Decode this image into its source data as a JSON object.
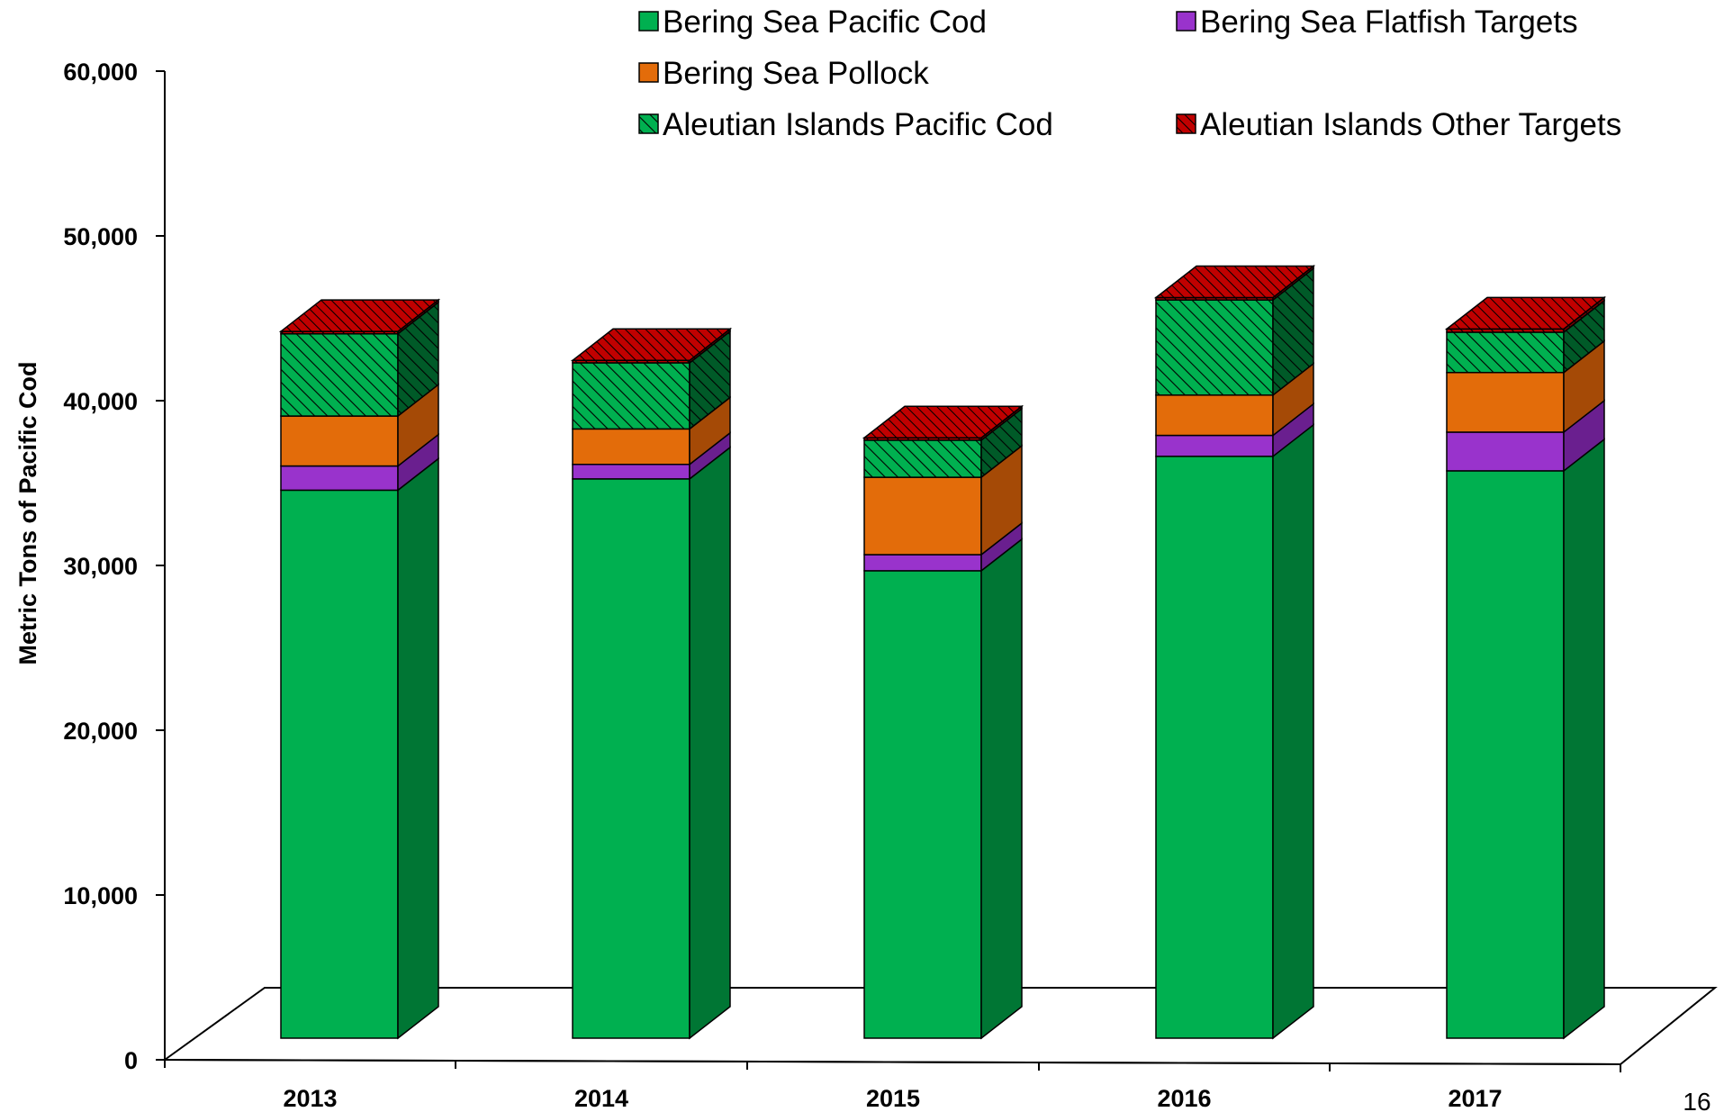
{
  "page_number": "16",
  "colors": {
    "pacific_cod_front": "#00b050",
    "pacific_cod_side": "#007634",
    "flatfish_front": "#9933cc",
    "flatfish_side": "#6a1f8f",
    "pollock_front": "#e36c0a",
    "pollock_side": "#a54a06",
    "ai_cod_front": "#00b050",
    "ai_cod_side": "#005a28",
    "ai_other_front": "#c00000",
    "ai_other_side": "#7a0000"
  },
  "chart_data": {
    "type": "bar",
    "stacked": true,
    "three_d": true,
    "categories": [
      "2013",
      "2014",
      "2015",
      "2016",
      "2017"
    ],
    "ylabel": "Metric Tons of Pacific Cod",
    "xlabel": "",
    "ylim": [
      0,
      60000
    ],
    "yticks": [
      0,
      10000,
      20000,
      30000,
      40000,
      50000,
      60000
    ],
    "ytick_labels": [
      "0",
      "10,000",
      "20,000",
      "30,000",
      "40,000",
      "50,000",
      "60,000"
    ],
    "legend_position": "top",
    "series": [
      {
        "name": "Bering Sea Pacific Cod",
        "values": [
          34000,
          34700,
          29000,
          36100,
          35200
        ],
        "pattern": "solid",
        "color_key": "pacific_cod"
      },
      {
        "name": "Bering Sea Flatfish Targets",
        "values": [
          1500,
          900,
          1000,
          1300,
          2400
        ],
        "pattern": "solid",
        "color_key": "flatfish"
      },
      {
        "name": "Bering Sea Pollock",
        "values": [
          3100,
          2200,
          4800,
          2500,
          3700
        ],
        "pattern": "solid",
        "color_key": "pollock"
      },
      {
        "name": "Aleutian Islands Pacific Cod",
        "values": [
          5100,
          4100,
          2300,
          5900,
          2500
        ],
        "pattern": "hatch",
        "color_key": "ai_cod"
      },
      {
        "name": "Aleutian Islands Other Targets",
        "values": [
          150,
          150,
          150,
          150,
          200
        ],
        "pattern": "hatch",
        "color_key": "ai_other"
      }
    ]
  }
}
